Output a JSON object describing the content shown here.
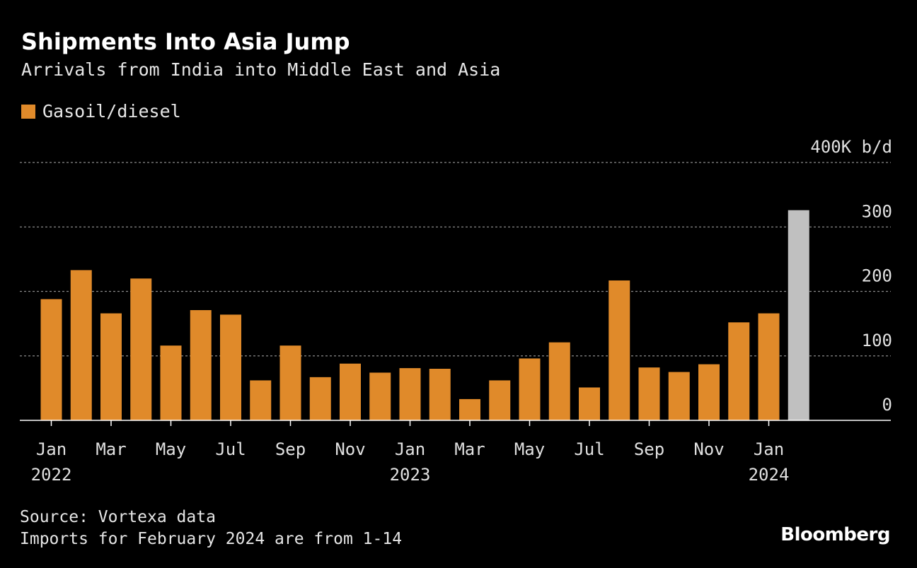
{
  "title": "Shipments Into Asia Jump",
  "subtitle": "Arrivals from India into Middle East and Asia",
  "legend": {
    "label": "Gasoil/diesel",
    "color": "#e08a2a"
  },
  "source": "Source: Vortexa data",
  "note": "Imports for February 2024 are from 1-14",
  "brand": "Bloomberg",
  "chart_data": {
    "type": "bar",
    "title": "Shipments Into Asia Jump",
    "unit_label": "400K b/d",
    "categories": [
      "Jan 2022",
      "Feb 2022",
      "Mar 2022",
      "Apr 2022",
      "May 2022",
      "Jun 2022",
      "Jul 2022",
      "Aug 2022",
      "Sep 2022",
      "Oct 2022",
      "Nov 2022",
      "Dec 2022",
      "Jan 2023",
      "Feb 2023",
      "Mar 2023",
      "Apr 2023",
      "May 2023",
      "Jun 2023",
      "Jul 2023",
      "Aug 2023",
      "Sep 2023",
      "Oct 2023",
      "Nov 2023",
      "Dec 2023",
      "Jan 2024",
      "Feb 2024"
    ],
    "series": [
      {
        "name": "Gasoil/diesel",
        "color": "#e08a2a",
        "values": [
          188,
          233,
          166,
          220,
          116,
          171,
          164,
          62,
          116,
          67,
          88,
          74,
          81,
          80,
          33,
          62,
          96,
          121,
          51,
          217,
          82,
          75,
          87,
          152,
          166,
          326
        ],
        "partial_color": "#c0c0c0",
        "partial_index": 25
      }
    ],
    "ylim": [
      0,
      400
    ],
    "yticks": [
      {
        "value": 0,
        "label": "0"
      },
      {
        "value": 100,
        "label": "100"
      },
      {
        "value": 200,
        "label": "200"
      },
      {
        "value": 300,
        "label": "300"
      },
      {
        "value": 400,
        "label": "400K b/d"
      }
    ],
    "xtick_labels": [
      {
        "index": 0,
        "month": "Jan",
        "year": "2022"
      },
      {
        "index": 2,
        "month": "Mar",
        "year": ""
      },
      {
        "index": 4,
        "month": "May",
        "year": ""
      },
      {
        "index": 6,
        "month": "Jul",
        "year": ""
      },
      {
        "index": 8,
        "month": "Sep",
        "year": ""
      },
      {
        "index": 10,
        "month": "Nov",
        "year": ""
      },
      {
        "index": 12,
        "month": "Jan",
        "year": "2023"
      },
      {
        "index": 14,
        "month": "Mar",
        "year": ""
      },
      {
        "index": 16,
        "month": "May",
        "year": ""
      },
      {
        "index": 18,
        "month": "Jul",
        "year": ""
      },
      {
        "index": 20,
        "month": "Sep",
        "year": ""
      },
      {
        "index": 22,
        "month": "Nov",
        "year": ""
      },
      {
        "index": 24,
        "month": "Jan",
        "year": "2024"
      }
    ],
    "grid": true
  }
}
